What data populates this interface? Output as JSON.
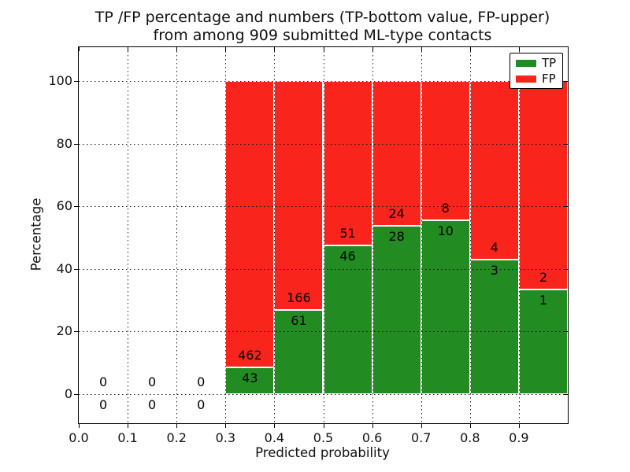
{
  "title": {
    "line1": "TP /FP percentage and numbers (TP-bottom value, FP-upper)",
    "line2": "from among 909 submitted ML-type contacts"
  },
  "axes": {
    "xlabel": "Predicted probability",
    "ylabel": "Percentage",
    "x_tick_labels": [
      "0.0",
      "0.1",
      "0.2",
      "0.3",
      "0.4",
      "0.5",
      "0.6",
      "0.7",
      "0.8",
      "0.9"
    ],
    "y_tick_labels": [
      "0",
      "20",
      "40",
      "60",
      "80",
      "100"
    ]
  },
  "legend": {
    "items": [
      {
        "label": "TP",
        "color": "#228b22"
      },
      {
        "label": "FP",
        "color": "#f9251c"
      }
    ]
  },
  "colors": {
    "tp": "#228b22",
    "fp": "#f9251c",
    "spine": "#000000",
    "grid": "#0a0a0a",
    "text": "#000000"
  },
  "chart_data": {
    "type": "bar",
    "stacked": true,
    "normalized_to_percent": true,
    "title": "TP /FP percentage and numbers (TP-bottom value, FP-upper) from among 909 submitted ML-type contacts",
    "xlabel": "Predicted probability",
    "ylabel": "Percentage",
    "total_contacts": 909,
    "bin_edges": [
      0.0,
      0.1,
      0.2,
      0.3,
      0.4,
      0.5,
      0.6,
      0.7,
      0.8,
      0.9,
      1.0
    ],
    "series": [
      {
        "name": "TP",
        "color": "#228b22",
        "counts": [
          0,
          0,
          0,
          43,
          61,
          46,
          28,
          10,
          3,
          1
        ]
      },
      {
        "name": "FP",
        "color": "#f9251c",
        "counts": [
          0,
          0,
          0,
          462,
          166,
          51,
          24,
          8,
          4,
          2
        ]
      }
    ],
    "tp_percent_by_bin": [
      null,
      null,
      null,
      8.51,
      26.87,
      47.42,
      53.85,
      55.56,
      42.86,
      33.33
    ],
    "x_ticks": [
      0.0,
      0.1,
      0.2,
      0.3,
      0.4,
      0.5,
      0.6,
      0.7,
      0.8,
      0.9
    ],
    "y_ticks": [
      0,
      20,
      40,
      60,
      80,
      100
    ],
    "xlim": [
      0.0,
      1.0
    ],
    "ylim": [
      -9.3,
      110.8
    ],
    "grid": true,
    "grid_style": "dotted",
    "legend_position": "upper right",
    "annotation_rule": "FP count printed above the TP/FP boundary, TP count printed below it; bins with no data show 0 above and below the 0% line"
  }
}
